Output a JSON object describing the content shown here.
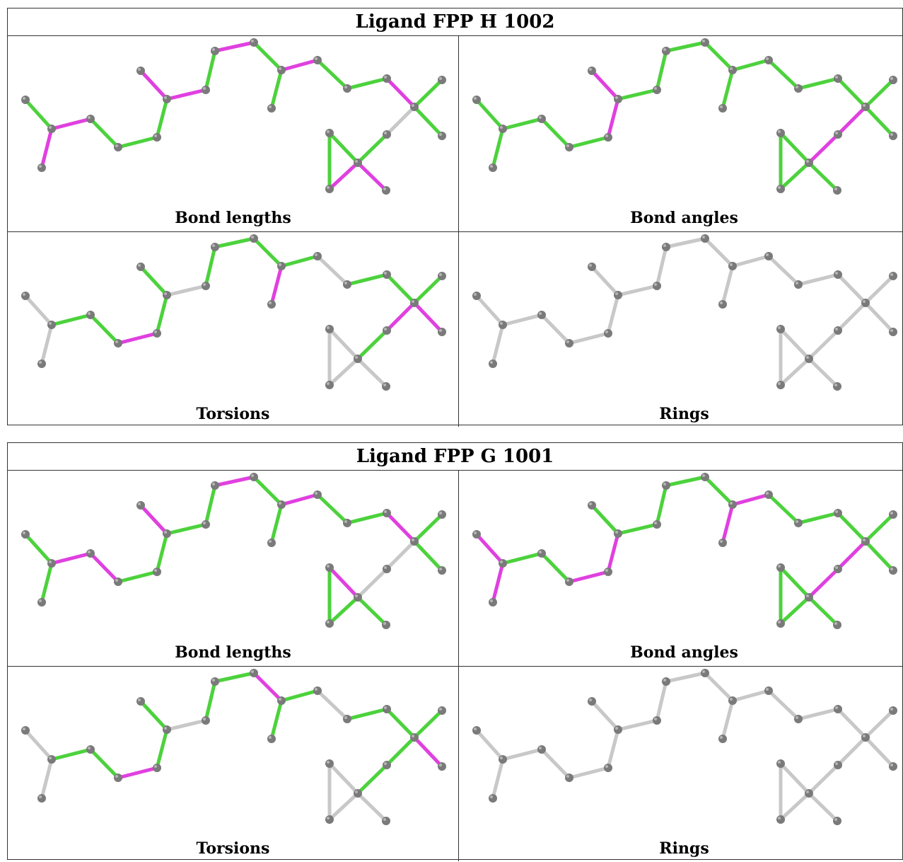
{
  "blocks": [
    {
      "title": "Ligand FPP H 1002",
      "panels": [
        {
          "caption": "Bond lengths",
          "bonds": [
            "g",
            "m",
            "m",
            "g",
            "g",
            "g",
            "m",
            "m",
            "g",
            "m",
            "g",
            "g",
            "m",
            "g",
            "g",
            "m",
            "g",
            "g",
            "l",
            "g",
            "g",
            "m",
            "m",
            "g"
          ],
          "atoms": "gray"
        },
        {
          "caption": "Bond angles",
          "bonds": [
            "g",
            "g",
            "g",
            "g",
            "g",
            "m",
            "m",
            "g",
            "g",
            "g",
            "g",
            "g",
            "g",
            "g",
            "g",
            "g",
            "g",
            "g",
            "m",
            "m",
            "g",
            "g",
            "g",
            "g"
          ],
          "atoms": "gray"
        },
        {
          "caption": "Torsions",
          "bonds": [
            "l",
            "l",
            "g",
            "g",
            "m",
            "g",
            "g",
            "l",
            "g",
            "g",
            "g",
            "m",
            "g",
            "l",
            "g",
            "g",
            "g",
            "m",
            "m",
            "g",
            "l",
            "l",
            "l",
            "l"
          ],
          "atoms": "gray"
        },
        {
          "caption": "Rings",
          "bonds": [
            "l",
            "l",
            "l",
            "l",
            "l",
            "l",
            "l",
            "l",
            "l",
            "l",
            "l",
            "l",
            "l",
            "l",
            "l",
            "l",
            "l",
            "l",
            "l",
            "l",
            "l",
            "l",
            "l",
            "l"
          ],
          "atoms": "gray"
        }
      ]
    },
    {
      "title": "Ligand FPP G 1001",
      "panels": [
        {
          "caption": "Bond lengths",
          "bonds": [
            "g",
            "g",
            "m",
            "m",
            "g",
            "g",
            "m",
            "g",
            "g",
            "m",
            "g",
            "g",
            "m",
            "g",
            "g",
            "m",
            "g",
            "g",
            "l",
            "l",
            "m",
            "g",
            "g",
            "g"
          ],
          "atoms": "gray"
        },
        {
          "caption": "Bond angles",
          "bonds": [
            "m",
            "m",
            "g",
            "g",
            "m",
            "m",
            "g",
            "g",
            "g",
            "g",
            "g",
            "m",
            "m",
            "g",
            "g",
            "g",
            "g",
            "g",
            "m",
            "m",
            "g",
            "g",
            "g",
            "g"
          ],
          "atoms": "gray"
        },
        {
          "caption": "Torsions",
          "bonds": [
            "l",
            "l",
            "g",
            "g",
            "m",
            "g",
            "g",
            "l",
            "g",
            "g",
            "m",
            "g",
            "g",
            "l",
            "g",
            "g",
            "g",
            "m",
            "g",
            "g",
            "l",
            "l",
            "l",
            "l"
          ],
          "atoms": "gray"
        },
        {
          "caption": "Rings",
          "bonds": [
            "l",
            "l",
            "l",
            "l",
            "l",
            "l",
            "l",
            "l",
            "l",
            "l",
            "l",
            "l",
            "l",
            "l",
            "l",
            "l",
            "l",
            "l",
            "l",
            "l",
            "l",
            "l",
            "l",
            "l"
          ],
          "atoms": "gray"
        }
      ]
    }
  ],
  "colors": {
    "green": "#4cd23c",
    "magenta": "#e040e0",
    "lightgray": "#c8c8c8",
    "atom": "#7a7a7a",
    "border": "#333333"
  }
}
